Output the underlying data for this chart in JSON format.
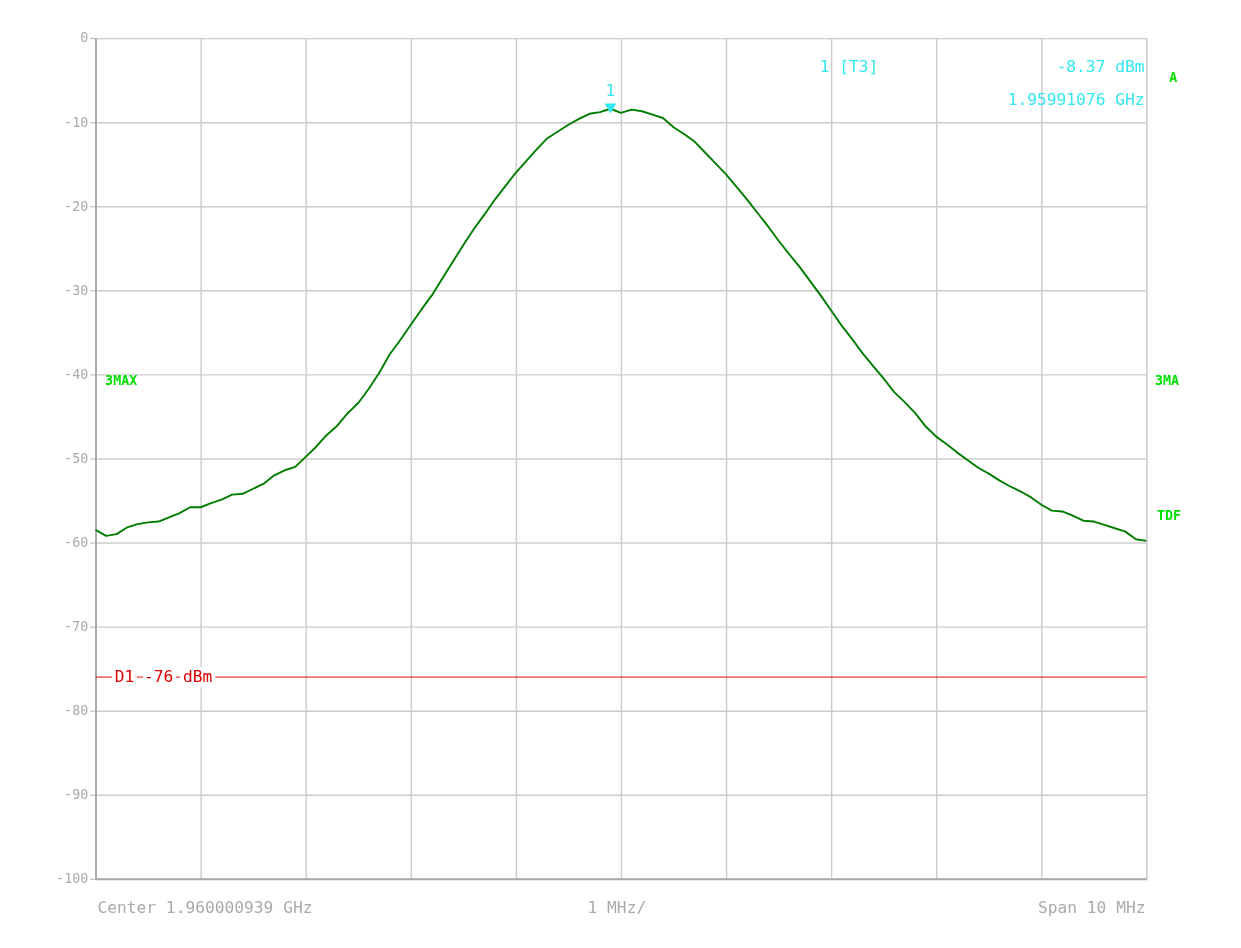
{
  "chart_data": {
    "type": "line",
    "categories": [
      null,
      null,
      null,
      null,
      null,
      null,
      null,
      null,
      null,
      null,
      null,
      null,
      null,
      null,
      null,
      null,
      null,
      null,
      null,
      null,
      null,
      null,
      null,
      null,
      null,
      null,
      null,
      null,
      null,
      null,
      null,
      null,
      null,
      null,
      null,
      null,
      null,
      null,
      null,
      null,
      null,
      null,
      null,
      null,
      null,
      null,
      null,
      null,
      null,
      null,
      null,
      null,
      null,
      null,
      null,
      null,
      null,
      null,
      null,
      null,
      null,
      null,
      null,
      null,
      null,
      null,
      null,
      null,
      null,
      null,
      null,
      null,
      null,
      null,
      null,
      null,
      null,
      null,
      null,
      null,
      null,
      null,
      null,
      null,
      null,
      null,
      null,
      null,
      null,
      null,
      null,
      null,
      null,
      null,
      null,
      null,
      null,
      null,
      null,
      null,
      null
    ],
    "series": [
      {
        "color": "#007c00",
        "values": [
          -58.5,
          -59.2,
          -59.0,
          -58.2,
          -57.8,
          -57.6,
          -57.5,
          -57.0,
          -56.5,
          -55.8,
          -55.8,
          -55.3,
          -54.9,
          -54.3,
          -54.2,
          -53.6,
          -53.0,
          -52.0,
          -51.4,
          -51.0,
          -49.8,
          -48.6,
          -47.2,
          -46.1,
          -44.6,
          -43.4,
          -41.7,
          -39.8,
          -37.6,
          -35.9,
          -34.1,
          -32.3,
          -30.6,
          -28.6,
          -26.6,
          -24.6,
          -22.7,
          -21.0,
          -19.2,
          -17.6,
          -16.0,
          -14.6,
          -13.2,
          -11.9,
          -11.1,
          -10.3,
          -9.6,
          -9.0,
          -8.8,
          -8.4,
          -8.9,
          -8.5,
          -8.7,
          -9.1,
          -9.5,
          -10.6,
          -11.4,
          -12.3,
          -13.6,
          -14.9,
          -16.2,
          -17.7,
          -19.2,
          -20.8,
          -22.4,
          -24.1,
          -25.7,
          -27.2,
          -28.9,
          -30.6,
          -32.4,
          -34.2,
          -35.8,
          -37.5,
          -39.0,
          -40.5,
          -42.1,
          -43.3,
          -44.6,
          -46.2,
          -47.4,
          -48.3,
          -49.3,
          -50.2,
          -51.1,
          -51.8,
          -52.6,
          -53.3,
          -53.9,
          -54.6,
          -55.5,
          -56.2,
          -56.3,
          -56.8,
          -57.4,
          -57.5,
          -57.9,
          -58.3,
          -58.7,
          -59.6,
          -59.8
        ]
      }
    ],
    "ylim": [
      -100,
      0
    ],
    "yticks": [
      0,
      -10,
      -20,
      -30,
      -40,
      -50,
      -60,
      -70,
      -80,
      -90,
      -100
    ],
    "grid": true,
    "tick_labels": "y",
    "marker": "none",
    "line_style": "solid",
    "ref_lines": [
      {
        "axis": "y",
        "value": -76,
        "label": "D1 -76 dBm",
        "color": "#dd0000"
      }
    ],
    "annotations": [
      "Center 1.960000939 GHz",
      "1 MHz/",
      "Span 10 MHz",
      "1 [T3]",
      "-8.37 dBm",
      "1.95991076 GHz",
      "3MAX",
      "3MA",
      "TDF",
      "A",
      {
        "text": "1",
        "y": -8.37
      }
    ]
  }
}
